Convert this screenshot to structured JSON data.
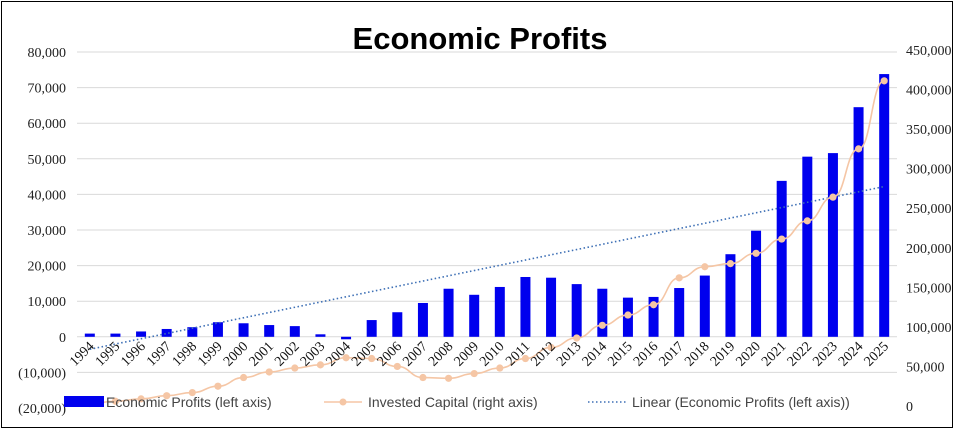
{
  "chart_data": {
    "type": "bar",
    "title": "Economic Profits",
    "categories": [
      "1994",
      "1995",
      "1996",
      "1997",
      "1998",
      "1999",
      "2000",
      "2001",
      "2002",
      "2003",
      "2004",
      "2005",
      "2006",
      "2007",
      "2008",
      "2009",
      "2010",
      "2011",
      "2012",
      "2013",
      "2014",
      "2015",
      "2016",
      "2017",
      "2018",
      "2019",
      "2020",
      "2021",
      "2022",
      "2023",
      "2024",
      "2025"
    ],
    "series": [
      {
        "name": "Economic Profits (left axis)",
        "kind": "bar",
        "axis": "left",
        "color": "#0000ee",
        "values": [
          900,
          900,
          1500,
          2200,
          2700,
          4100,
          3800,
          3300,
          3000,
          700,
          -700,
          4700,
          6900,
          9500,
          13500,
          11800,
          14000,
          16800,
          16600,
          14800,
          13500,
          11000,
          11200,
          13700,
          17200,
          23200,
          29800,
          43800,
          50600,
          51600,
          64500,
          73800
        ]
      },
      {
        "name": "Invested Capital (right axis)",
        "kind": "line",
        "axis": "right",
        "color": "#f5c6a5",
        "values": [
          3000,
          6000,
          9000,
          13000,
          17000,
          25000,
          36000,
          43000,
          48000,
          52000,
          61000,
          60000,
          50000,
          36000,
          35000,
          41000,
          48000,
          60000,
          74000,
          86000,
          102000,
          115000,
          128000,
          162000,
          176000,
          180000,
          193000,
          211000,
          234000,
          264000,
          325000,
          411000
        ]
      },
      {
        "name": "Linear (Economic Profits (left axis))",
        "kind": "trendline",
        "axis": "left",
        "color": "#3d6fb5",
        "from": -3500,
        "to": 42200
      }
    ],
    "left_axis": {
      "ticks": [
        "80,000",
        "70,000",
        "60,000",
        "50,000",
        "40,000",
        "30,000",
        "20,000",
        "10,000",
        "0",
        "(10,000)",
        "(20,000)"
      ],
      "ylim": [
        -20000,
        80000
      ]
    },
    "right_axis": {
      "ticks": [
        "450,000",
        "400,000",
        "350,000",
        "300,000",
        "250,000",
        "200,000",
        "150,000",
        "100,000",
        "50,000",
        "0"
      ],
      "ylim": [
        0,
        450000
      ]
    },
    "grid": true,
    "legend": "bottom"
  }
}
